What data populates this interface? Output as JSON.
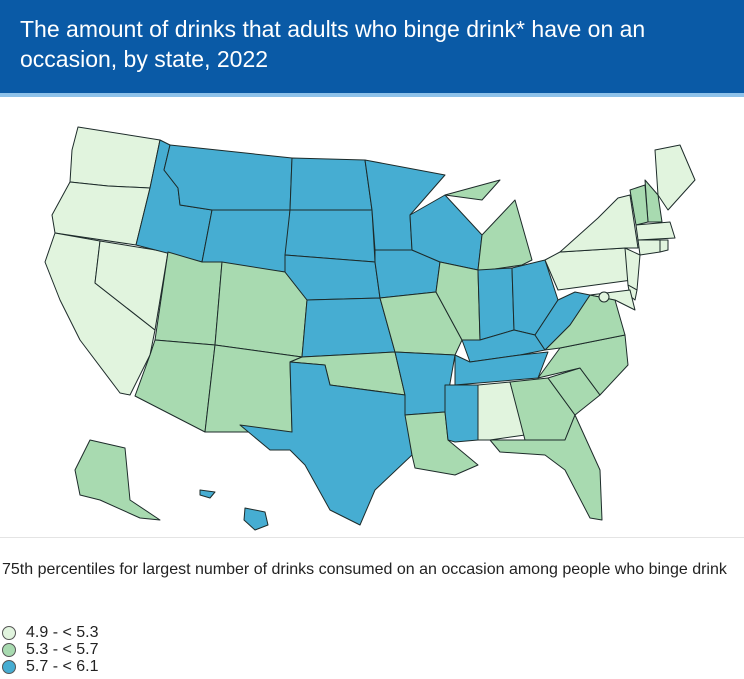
{
  "header": {
    "title": "The amount of drinks that adults who binge drink* have on an occasion, by state, 2022"
  },
  "subtitle": "75th percentiles for largest number of drinks consumed on an occasion among people who binge drink",
  "colors": {
    "low": "#e1f4de",
    "mid": "#a8dab0",
    "high": "#46add2",
    "header_bg": "#0a5aa6"
  },
  "legend": {
    "items": [
      {
        "label": "4.9 - < 5.3",
        "level": "low"
      },
      {
        "label": "5.3 - < 5.7",
        "level": "mid"
      },
      {
        "label": "5.7 - < 6.1",
        "level": "high"
      }
    ]
  },
  "states": [
    {
      "id": "WA",
      "level": "low"
    },
    {
      "id": "OR",
      "level": "low"
    },
    {
      "id": "CA",
      "level": "low"
    },
    {
      "id": "NV",
      "level": "low"
    },
    {
      "id": "ID",
      "level": "high"
    },
    {
      "id": "MT",
      "level": "high"
    },
    {
      "id": "WY",
      "level": "high"
    },
    {
      "id": "UT",
      "level": "mid"
    },
    {
      "id": "CO",
      "level": "mid"
    },
    {
      "id": "AZ",
      "level": "mid"
    },
    {
      "id": "NM",
      "level": "mid"
    },
    {
      "id": "ND",
      "level": "high"
    },
    {
      "id": "SD",
      "level": "high"
    },
    {
      "id": "NE",
      "level": "high"
    },
    {
      "id": "KS",
      "level": "high"
    },
    {
      "id": "OK",
      "level": "mid"
    },
    {
      "id": "TX",
      "level": "high"
    },
    {
      "id": "MN",
      "level": "high"
    },
    {
      "id": "IA",
      "level": "high"
    },
    {
      "id": "MO",
      "level": "mid"
    },
    {
      "id": "AR",
      "level": "high"
    },
    {
      "id": "LA",
      "level": "mid"
    },
    {
      "id": "WI",
      "level": "high"
    },
    {
      "id": "IL",
      "level": "mid"
    },
    {
      "id": "MI",
      "level": "mid"
    },
    {
      "id": "IN",
      "level": "high"
    },
    {
      "id": "OH",
      "level": "high"
    },
    {
      "id": "KY",
      "level": "high"
    },
    {
      "id": "TN",
      "level": "high"
    },
    {
      "id": "MS",
      "level": "high"
    },
    {
      "id": "AL",
      "level": "low"
    },
    {
      "id": "GA",
      "level": "mid"
    },
    {
      "id": "FL",
      "level": "mid"
    },
    {
      "id": "SC",
      "level": "mid"
    },
    {
      "id": "NC",
      "level": "mid"
    },
    {
      "id": "VA",
      "level": "mid"
    },
    {
      "id": "WV",
      "level": "high"
    },
    {
      "id": "PA",
      "level": "low"
    },
    {
      "id": "NY",
      "level": "low"
    },
    {
      "id": "ME",
      "level": "low"
    },
    {
      "id": "NH",
      "level": "mid"
    },
    {
      "id": "VT",
      "level": "mid"
    },
    {
      "id": "MA",
      "level": "low"
    },
    {
      "id": "CT",
      "level": "low"
    },
    {
      "id": "RI",
      "level": "low"
    },
    {
      "id": "NJ",
      "level": "low"
    },
    {
      "id": "DE",
      "level": "low"
    },
    {
      "id": "MD",
      "level": "low"
    },
    {
      "id": "DC",
      "level": "low"
    },
    {
      "id": "AK",
      "level": "mid"
    },
    {
      "id": "HI",
      "level": "high"
    }
  ]
}
